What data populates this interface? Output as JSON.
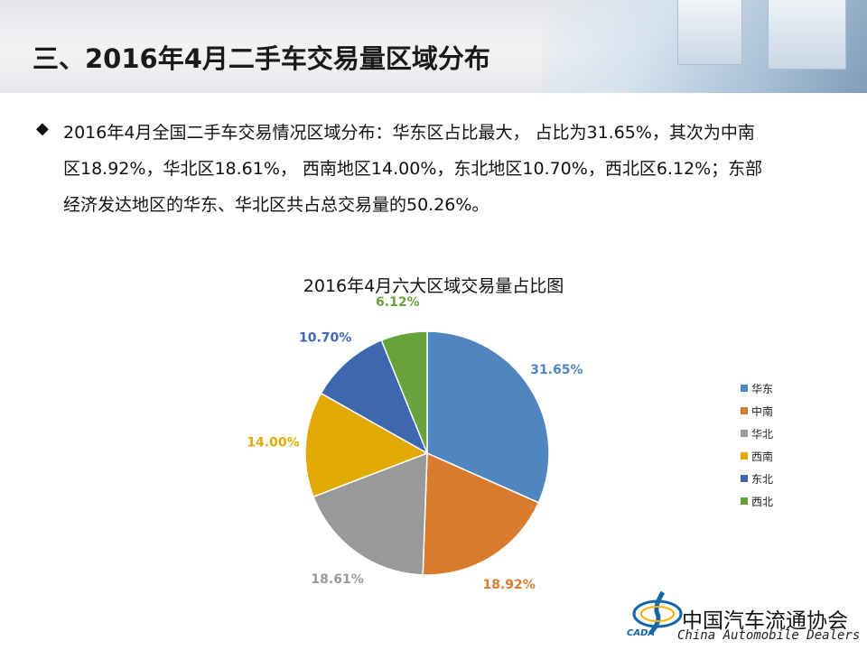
{
  "header": {
    "title": "三、2016年4月二手车交易量区域分布"
  },
  "summary": {
    "bullet": "◆",
    "lines": [
      "2016年4月全国二手车交易情况区域分布：华东区占比最大， 占比为31.65%，其次为中南",
      "区18.92%，华北区18.61%，  西南地区14.00%，东北地区10.70%，西北区6.12%；东部",
      "经济发达地区的华东、华北区共占总交易量的50.26%。"
    ]
  },
  "chart_data": {
    "type": "pie",
    "title": "2016年4月六大区域交易量占比图",
    "categories": [
      "华东",
      "中南",
      "华北",
      "西南",
      "东北",
      "西北"
    ],
    "values": [
      31.65,
      18.92,
      18.61,
      14.0,
      10.7,
      6.12
    ],
    "data_labels": [
      "31.65%",
      "18.92%",
      "18.61%",
      "14.00%",
      "10.70%",
      "6.12%"
    ],
    "colors": [
      "#4f86bf",
      "#d97b2e",
      "#999999",
      "#e1aa07",
      "#3d68b0",
      "#67a33c"
    ],
    "legend_position": "right"
  },
  "logo": {
    "name": "中国汽车流通协会",
    "english": "China  Automobile Dealers",
    "abbr": "CADA"
  }
}
